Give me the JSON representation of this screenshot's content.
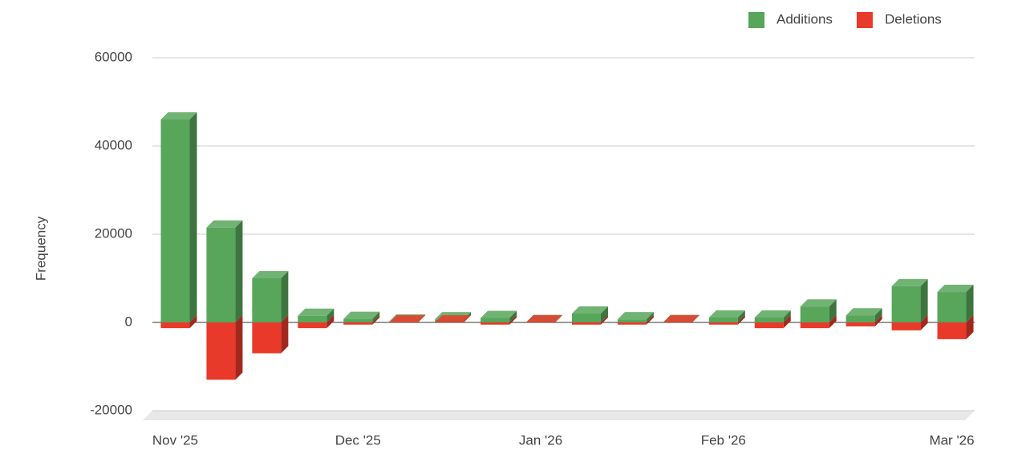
{
  "chart_data": {
    "type": "bar3d_stacked",
    "y_label": "Frequency",
    "categories": [
      "Nov '25",
      null,
      null,
      null,
      "Dec '25",
      null,
      null,
      null,
      "Jan '26",
      null,
      null,
      null,
      "Feb '26",
      null,
      null,
      null,
      null,
      "Mar '26"
    ],
    "series": [
      {
        "name": "Additions",
        "color": "#57a65a",
        "values": [
          46000,
          21500,
          10000,
          1500,
          800,
          200,
          700,
          1000,
          100,
          2000,
          700,
          100,
          1100,
          1100,
          3600,
          1600,
          8200,
          6900
        ]
      },
      {
        "name": "Deletions",
        "color": "#e8392a",
        "values": [
          -1300,
          -13000,
          -7000,
          -1300,
          -500,
          0,
          0,
          -500,
          0,
          -500,
          -500,
          0,
          -500,
          -1300,
          -1300,
          -900,
          -1800,
          -3800
        ]
      }
    ],
    "ylim": [
      -20000,
      60000
    ],
    "yticks": [
      -20000,
      0,
      20000,
      40000,
      60000
    ],
    "grid": true,
    "legend": "top-right"
  }
}
